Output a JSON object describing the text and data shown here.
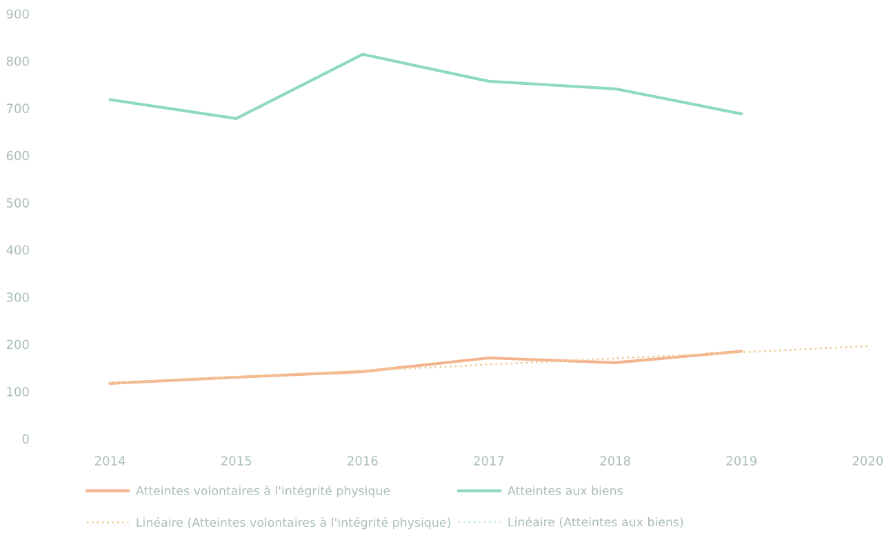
{
  "chart_data": {
    "type": "line",
    "categories": [
      "2014",
      "2015",
      "2016",
      "2017",
      "2018",
      "2019",
      "2020"
    ],
    "ylim": [
      0,
      900
    ],
    "yticks": [
      0,
      100,
      200,
      300,
      400,
      500,
      600,
      700,
      800,
      900
    ],
    "grid": false,
    "legend": "bottom",
    "series": [
      {
        "name": "Atteintes volontaires à l'intégrité physique",
        "color": "#f4b48e",
        "line_style": "solid",
        "values": [
          117,
          130,
          142,
          171,
          161,
          185,
          null
        ]
      },
      {
        "name": "Atteintes aux biens",
        "color": "#8fd8c4",
        "line_style": "solid",
        "values": [
          718,
          678,
          814,
          757,
          741,
          688,
          null
        ]
      },
      {
        "name": "Linéaire (Atteintes volontaires à l'intégrité physique)",
        "color": "#f0d09a",
        "line_style": "dotted",
        "values": [
          118,
          131,
          144,
          157,
          170,
          183,
          196
        ]
      },
      {
        "name": "Linéaire (Atteintes aux biens)",
        "color": "#cdebe3",
        "line_style": "dotted",
        "values": [
          null,
          null,
          null,
          null,
          null,
          null,
          null
        ]
      }
    ]
  }
}
